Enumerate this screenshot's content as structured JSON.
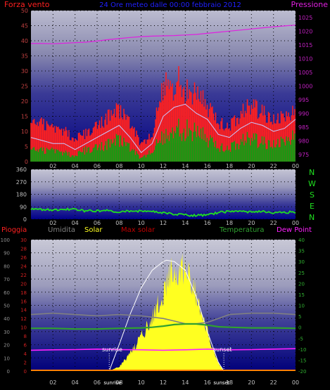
{
  "colors": {
    "wind": "#ff2020",
    "wind_avg": "#c8c8ff",
    "wind_low": "#10a010",
    "pressure": "#e020e0",
    "title": "#2020ff",
    "direction": "#20e020",
    "rain": "#ff2020",
    "humidity": "#808080",
    "solar": "#ffff20",
    "max_solar": "#ffffff",
    "temperature": "#30a030",
    "dew_point": "#ff20ff"
  },
  "labels": {
    "sunrise": "sunrise",
    "sunset": "sunset"
  },
  "chart_data": [
    {
      "type": "line",
      "title": "24 Ore meteo dalle 00:00 febbraio 2012",
      "left_axis_label": "Forza vento",
      "right_axis_label": "Pressione",
      "x_ticks": [
        "02",
        "04",
        "06",
        "08",
        "10",
        "12",
        "14",
        "16",
        "18",
        "20",
        "22",
        "00"
      ],
      "y_left_ticks": [
        "0",
        "5",
        "10",
        "15",
        "20",
        "25",
        "30",
        "35",
        "40",
        "45",
        "50"
      ],
      "y_left_range": [
        0,
        50
      ],
      "y_right_ticks": [
        "975",
        "980",
        "985",
        "990",
        "995",
        "1000",
        "1005",
        "1010",
        "1015",
        "1020",
        "1025"
      ],
      "y_right_range": [
        972.5,
        1027.5
      ],
      "x_range": [
        0,
        24
      ],
      "series": [
        {
          "key": "gust",
          "x": [
            0,
            1,
            2,
            3,
            4,
            5,
            6,
            7,
            8,
            9,
            10,
            11,
            12,
            12.5,
            13,
            13.5,
            14,
            15,
            16,
            17,
            18,
            19,
            20,
            21,
            22,
            23,
            24
          ],
          "values": [
            15,
            14,
            12,
            11,
            8,
            10,
            13,
            16,
            19,
            14,
            6,
            10,
            27,
            31,
            24,
            30,
            25,
            24,
            20,
            14,
            13,
            17,
            20,
            18,
            15,
            16,
            18
          ]
        },
        {
          "key": "average",
          "x": [
            0,
            1,
            2,
            3,
            4,
            5,
            6,
            7,
            8,
            9,
            10,
            11,
            12,
            13,
            14,
            15,
            16,
            17,
            18,
            19,
            20,
            21,
            22,
            23,
            24
          ],
          "values": [
            8,
            7,
            6,
            6,
            4,
            6,
            8,
            10,
            12,
            8,
            3,
            6,
            15,
            18,
            19,
            16,
            14,
            9,
            8,
            11,
            13,
            12,
            10,
            11,
            14
          ]
        },
        {
          "key": "low",
          "x": [
            0,
            1,
            2,
            3,
            4,
            5,
            6,
            7,
            8,
            9,
            10,
            11,
            12,
            13,
            14,
            15,
            16,
            17,
            18,
            19,
            20,
            21,
            22,
            23,
            24
          ],
          "values": [
            5,
            4,
            4,
            3,
            2,
            4,
            5,
            6,
            8,
            5,
            1,
            4,
            9,
            11,
            11,
            10,
            8,
            5,
            5,
            7,
            8,
            7,
            6,
            7,
            9
          ]
        },
        {
          "key": "pressure",
          "x": [
            0,
            1,
            2,
            3,
            4,
            5,
            6,
            7,
            8,
            9,
            10,
            11,
            12,
            13,
            14,
            15,
            16,
            17,
            18,
            19,
            20,
            21,
            22,
            23,
            24
          ],
          "values": [
            1015.5,
            1015.5,
            1015.4,
            1015.6,
            1015.8,
            1016,
            1016.4,
            1016.9,
            1017.3,
            1017.7,
            1018,
            1018.2,
            1018.3,
            1018.4,
            1018.6,
            1018.8,
            1019.2,
            1019.6,
            1020,
            1020.4,
            1020.8,
            1021.2,
            1021.6,
            1021.9,
            1022.2
          ]
        }
      ]
    },
    {
      "type": "line",
      "x_ticks": [
        "02",
        "04",
        "06",
        "08",
        "10",
        "12",
        "14",
        "16",
        "18",
        "20",
        "22",
        "00"
      ],
      "y_ticks": [
        "0",
        "90",
        "180",
        "270",
        "360"
      ],
      "y_range": [
        0,
        360
      ],
      "x_range": [
        0,
        24
      ],
      "compass_labels": [
        "N",
        "W",
        "S",
        "E",
        "N"
      ],
      "series": [
        {
          "key": "direction",
          "x": [
            0,
            1,
            2,
            3,
            4,
            5,
            6,
            7,
            8,
            9,
            10,
            11,
            12,
            13,
            14,
            15,
            16,
            17,
            18,
            19,
            20,
            21,
            22,
            23,
            24
          ],
          "values": [
            75,
            70,
            65,
            72,
            70,
            60,
            60,
            62,
            55,
            60,
            58,
            60,
            45,
            35,
            30,
            28,
            30,
            48,
            58,
            55,
            50,
            60,
            45,
            50,
            52
          ]
        }
      ]
    },
    {
      "type": "line",
      "legend": [
        "Pioggia",
        "Umidita",
        "Solar",
        "Max solar",
        "Temperatura",
        "Dew Point"
      ],
      "x_ticks": [
        "02",
        "04",
        "06",
        "08",
        "10",
        "12",
        "14",
        "16",
        "18",
        "20",
        "22",
        "00"
      ],
      "y_left_outer_ticks": [
        "0",
        "10",
        "20",
        "30",
        "40",
        "50",
        "60",
        "70",
        "80",
        "90",
        "100"
      ],
      "y_left_outer_range": [
        0,
        100
      ],
      "y_left_inner_ticks": [
        "0",
        "2",
        "4",
        "6",
        "8",
        "10",
        "12",
        "14",
        "16",
        "18",
        "20",
        "22",
        "24",
        "26",
        "28",
        "30"
      ],
      "y_left_inner_range": [
        0,
        30
      ],
      "y_right_ticks": [
        "-20",
        "-15",
        "-10",
        "-5",
        "0",
        "5",
        "10",
        "15",
        "20",
        "25",
        "30",
        "35",
        "40"
      ],
      "y_right_range": [
        -20,
        40
      ],
      "x_range": [
        0,
        24
      ],
      "sunrise_hour": 7.1,
      "sunset_hour": 17.5,
      "series": [
        {
          "key": "humidity",
          "x": [
            0,
            2,
            4,
            6,
            8,
            10,
            11,
            12,
            13,
            14,
            15,
            16,
            17,
            18,
            20,
            22,
            24
          ],
          "values": [
            43,
            44,
            43,
            42,
            43,
            42,
            41,
            40,
            38,
            36,
            36,
            37,
            40,
            43,
            44,
            44,
            43
          ]
        },
        {
          "key": "temperature",
          "x": [
            0,
            2,
            4,
            6,
            8,
            10,
            11,
            12,
            13,
            14,
            15,
            16,
            17,
            18,
            20,
            22,
            24
          ],
          "values": [
            -0.5,
            -0.5,
            -0.8,
            -0.8,
            -0.5,
            -0.3,
            0,
            0.5,
            1.2,
            1.5,
            1.5,
            1,
            0.2,
            0,
            -0.3,
            -0.3,
            -0.5
          ]
        },
        {
          "key": "dew_point",
          "x": [
            0,
            2,
            4,
            6,
            8,
            10,
            12,
            14,
            16,
            18,
            20,
            22,
            24
          ],
          "values": [
            -10.5,
            -10.3,
            -10.2,
            -10,
            -10.2,
            -10.3,
            -10.5,
            -10.3,
            -10,
            -10.3,
            -10.2,
            -10,
            -9.8
          ]
        },
        {
          "key": "solar",
          "x": [
            7.1,
            8,
            9,
            10,
            11,
            12,
            12.5,
            13,
            13.5,
            14,
            14.5,
            15,
            15.5,
            16,
            16.5,
            17,
            17.5
          ],
          "values": [
            0,
            1,
            4,
            8,
            13,
            18,
            22,
            24,
            23,
            25,
            21,
            18,
            14,
            9,
            5,
            2,
            0
          ]
        },
        {
          "key": "max_solar",
          "x": [
            7.1,
            8,
            9,
            10,
            11,
            12,
            12.3,
            13,
            14,
            15,
            16,
            17,
            17.5
          ],
          "values": [
            0,
            6,
            13,
            19,
            23,
            25,
            25.3,
            25,
            23,
            17,
            9,
            2,
            0
          ]
        }
      ]
    }
  ]
}
